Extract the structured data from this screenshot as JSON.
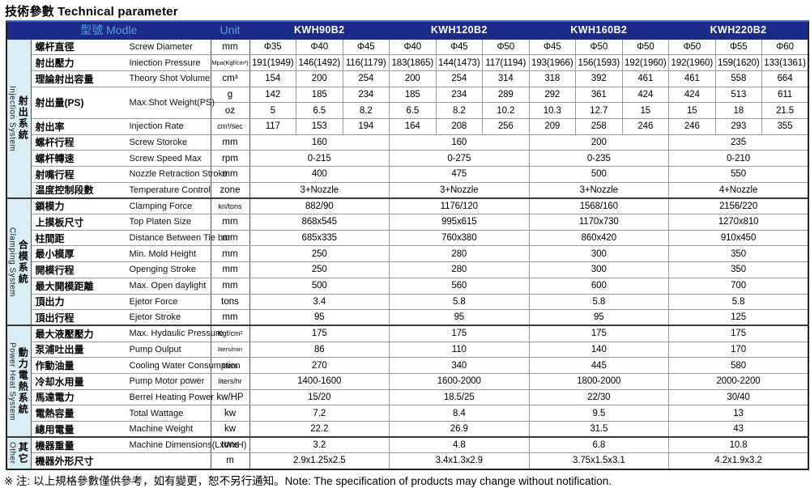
{
  "title": "技術參數 Technical parameter",
  "footnote": "※ 注: 以上規格參數僅供參考，如有變更，恕不另行通知。Note: The specification of products may change without notification.",
  "colors": {
    "header_bg": "#1b2b87",
    "header_text_accent": "#5b9fe0",
    "model_text": "#ffffff",
    "sidebar_bg": "#d9edf4"
  },
  "header": {
    "model_label": "型號 Modle",
    "unit_label": "Unit",
    "models": [
      "KWH90B2",
      "KWH120B2",
      "KWH160B2",
      "KWH220B2"
    ]
  },
  "sections": [
    {
      "zh": "射出系統",
      "en": "Injection System",
      "start": 0,
      "rows": 10
    },
    {
      "zh": "合模系統",
      "en": "Clamping System",
      "start": 10,
      "rows": 8
    },
    {
      "zh": "動力電熱系統",
      "en": "Power Heat System",
      "start": 18,
      "rows": 7
    },
    {
      "zh": "其它",
      "en": "Other",
      "start": 25,
      "rows": 2
    }
  ],
  "rows": [
    {
      "zh": "螺杆直徑",
      "en": "Screw Diameter",
      "unit": "mm",
      "type": "per_col",
      "label_rowspan": 1,
      "values": [
        "Φ35",
        "Φ40",
        "Φ45",
        "Φ40",
        "Φ45",
        "Φ50",
        "Φ45",
        "Φ50",
        "Φ50",
        "Φ50",
        "Φ55",
        "Φ60"
      ]
    },
    {
      "zh": "射出壓力",
      "en": "Iniection Pressure",
      "unit": "Mpa(Kgf/cm²)",
      "type": "per_col",
      "label_rowspan": 1,
      "values": [
        "191(1949)",
        "146(1492)",
        "116(1179)",
        "183(1865)",
        "144(1473)",
        "117(1194)",
        "193(1966)",
        "156(1593)",
        "192(1960)",
        "192(1960)",
        "159(1620)",
        "133(1361)"
      ]
    },
    {
      "zh": "理論射出容量",
      "en": "Theory Shot Volume",
      "unit": "cm³",
      "type": "per_col",
      "label_rowspan": 1,
      "values": [
        "154",
        "200",
        "254",
        "200",
        "254",
        "314",
        "318",
        "392",
        "461",
        "461",
        "558",
        "664"
      ]
    },
    {
      "zh": "射出量(PS)",
      "en": "Max.Shot Weight(PS)",
      "unit": "g",
      "type": "per_col",
      "label_rowspan": 2,
      "values": [
        "142",
        "185",
        "234",
        "185",
        "234",
        "289",
        "292",
        "361",
        "424",
        "424",
        "513",
        "611"
      ]
    },
    {
      "zh": "",
      "en": "",
      "unit": "oz",
      "type": "per_col",
      "label_rowspan": 0,
      "values": [
        "5",
        "6.5",
        "8.2",
        "6.5",
        "8.2",
        "10.2",
        "10.3",
        "12.7",
        "15",
        "15",
        "18",
        "21.5"
      ]
    },
    {
      "zh": "射出率",
      "en": "Injection Rate",
      "unit": "cm³/sec",
      "type": "per_col",
      "label_rowspan": 1,
      "values": [
        "117",
        "153",
        "194",
        "164",
        "208",
        "256",
        "209",
        "258",
        "246",
        "246",
        "293",
        "355"
      ]
    },
    {
      "zh": "螺杆行程",
      "en": "Screw Storoke",
      "unit": "mm",
      "type": "per_model",
      "label_rowspan": 1,
      "values": [
        "160",
        "160",
        "200",
        "235"
      ]
    },
    {
      "zh": "螺杆轉速",
      "en": "Screw Speed Max",
      "unit": "rpm",
      "type": "per_model",
      "label_rowspan": 1,
      "values": [
        "0-215",
        "0-275",
        "0-235",
        "0-210"
      ]
    },
    {
      "zh": "射嘴行程",
      "en": "Nozzle Retraction Stroke",
      "unit": "mm",
      "type": "per_model",
      "label_rowspan": 1,
      "values": [
        "400",
        "475",
        "500",
        "550"
      ]
    },
    {
      "zh": "温度控制段數",
      "en": "Temperature Control",
      "unit": "zone",
      "type": "per_model",
      "label_rowspan": 1,
      "values": [
        "3+Nozzle",
        "3+Nozzle",
        "3+Nozzle",
        "4+Nozzle"
      ]
    },
    {
      "zh": "鎖模力",
      "en": "Clamping Force",
      "unit": "kn/tons",
      "type": "per_model",
      "label_rowspan": 1,
      "values": [
        "882/90",
        "1176/120",
        "1568/160",
        "2156/220"
      ]
    },
    {
      "zh": "上摸板尺寸",
      "en": "Top Platen Size",
      "unit": "mm",
      "type": "per_model",
      "label_rowspan": 1,
      "values": [
        "868x545",
        "995x615",
        "1170x730",
        "1270x810"
      ]
    },
    {
      "zh": "柱間距",
      "en": "Distance Between Tie bar",
      "unit": "mm",
      "type": "per_model",
      "label_rowspan": 1,
      "values": [
        "685x335",
        "760x380",
        "860x420",
        "910x450"
      ]
    },
    {
      "zh": "最小模厚",
      "en": "Min. Mold Height",
      "unit": "mm",
      "type": "per_model",
      "label_rowspan": 1,
      "values": [
        "250",
        "280",
        "300",
        "350"
      ]
    },
    {
      "zh": "開模行程",
      "en": "Openging Stroke",
      "unit": "mm",
      "type": "per_model",
      "label_rowspan": 1,
      "values": [
        "250",
        "280",
        "300",
        "350"
      ]
    },
    {
      "zh": "最大開模距離",
      "en": "Max. Open daylight",
      "unit": "mm",
      "type": "per_model",
      "label_rowspan": 1,
      "values": [
        "500",
        "560",
        "600",
        "700"
      ]
    },
    {
      "zh": "頂出力",
      "en": "Ejetor Force",
      "unit": "tons",
      "type": "per_model",
      "label_rowspan": 1,
      "values": [
        "3.4",
        "5.8",
        "5.8",
        "5.8"
      ]
    },
    {
      "zh": "頂出行程",
      "en": "Ejetor Stroke",
      "unit": "mm",
      "type": "per_model",
      "label_rowspan": 1,
      "values": [
        "95",
        "95",
        "95",
        "125"
      ]
    },
    {
      "zh": "最大液壓壓力",
      "en": "Max. Hydaulic Pressure",
      "unit": "Kgf/cm²",
      "type": "per_model",
      "label_rowspan": 1,
      "values": [
        "175",
        "175",
        "175",
        "175"
      ]
    },
    {
      "zh": "泵浦吐出量",
      "en": "Pump Oulput",
      "unit": "liters/min",
      "type": "per_model",
      "label_rowspan": 1,
      "values": [
        "86",
        "110",
        "140",
        "170"
      ]
    },
    {
      "zh": "作動油量",
      "en": "Cooling Water Consumption",
      "unit": "liters",
      "type": "per_model",
      "label_rowspan": 1,
      "values": [
        "270",
        "340",
        "445",
        "580"
      ]
    },
    {
      "zh": "冷却水用量",
      "en": "Pump Motor power",
      "unit": "liters/hr",
      "type": "per_model",
      "label_rowspan": 1,
      "values": [
        "1400-1600",
        "1600-2000",
        "1800-2000",
        "2000-2200"
      ]
    },
    {
      "zh": "馬達電力",
      "en": "Berrel Heating Power",
      "unit": "kw/HP",
      "type": "per_model",
      "label_rowspan": 1,
      "values": [
        "15/20",
        "18.5/25",
        "22/30",
        "30/40"
      ]
    },
    {
      "zh": "電熱容量",
      "en": "Total Wattage",
      "unit": "kw",
      "type": "per_model",
      "label_rowspan": 1,
      "values": [
        "7.2",
        "8.4",
        "9.5",
        "13"
      ]
    },
    {
      "zh": "總用電量",
      "en": "Machine Weight",
      "unit": "kw",
      "type": "per_model",
      "label_rowspan": 1,
      "values": [
        "22.2",
        "26.9",
        "31.5",
        "43"
      ]
    },
    {
      "zh": "機器重量",
      "en": "Machine Dimensions(LxWxH)",
      "unit": "tons",
      "type": "per_model",
      "label_rowspan": 1,
      "values": [
        "3.2",
        "4.8",
        "6.8",
        "10.8"
      ]
    },
    {
      "zh": "機器外形尺寸",
      "en": "",
      "unit": "m",
      "type": "per_model",
      "label_rowspan": 1,
      "values": [
        "2.9x1.25x2.5",
        "3.4x1.3x2.9",
        "3.75x1.5x3.1",
        "4.2x1.9x3.2"
      ]
    }
  ]
}
